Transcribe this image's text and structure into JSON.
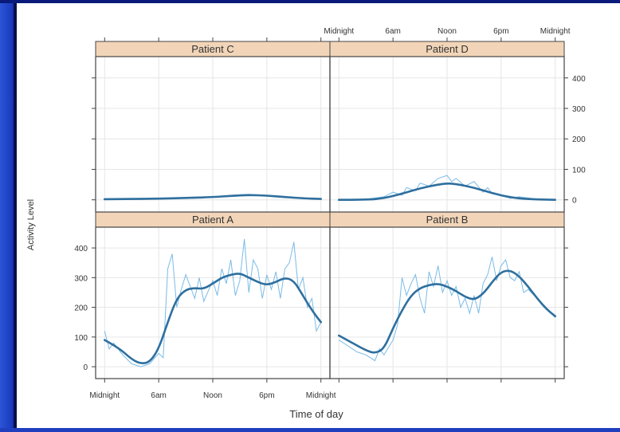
{
  "colors": {
    "strip": "#f2d5b8",
    "raw": "#6cb4e4",
    "smooth": "#2e6f9e",
    "frame": "#444444",
    "grid": "#e6e6e6"
  },
  "chart_data": {
    "type": "line",
    "xlabel": "Time of day",
    "ylabel": "Activity Level",
    "x_ticks": [
      0,
      6,
      12,
      18,
      24
    ],
    "x_tick_labels": [
      "Midnight",
      "6am",
      "Noon",
      "6pm",
      "Midnight"
    ],
    "xlim": [
      -1,
      25
    ],
    "ylim": [
      -40,
      470
    ],
    "y_ticks": [
      0,
      100,
      200,
      300,
      400
    ],
    "panels": [
      {
        "name": "Patient A",
        "smooth": [
          [
            0,
            90
          ],
          [
            1.5,
            65
          ],
          [
            3,
            25
          ],
          [
            4,
            10
          ],
          [
            5,
            15
          ],
          [
            6,
            60
          ],
          [
            7,
            150
          ],
          [
            8,
            230
          ],
          [
            9,
            260
          ],
          [
            10,
            265
          ],
          [
            11,
            262
          ],
          [
            12,
            280
          ],
          [
            13,
            300
          ],
          [
            14,
            310
          ],
          [
            15,
            315
          ],
          [
            16,
            300
          ],
          [
            17,
            285
          ],
          [
            18,
            275
          ],
          [
            19,
            285
          ],
          [
            20,
            300
          ],
          [
            21,
            290
          ],
          [
            22,
            240
          ],
          [
            23,
            190
          ],
          [
            24,
            150
          ]
        ],
        "raw": [
          [
            0,
            120
          ],
          [
            0.5,
            60
          ],
          [
            1,
            80
          ],
          [
            2,
            40
          ],
          [
            3,
            10
          ],
          [
            4,
            0
          ],
          [
            5,
            10
          ],
          [
            6,
            45
          ],
          [
            6.5,
            30
          ],
          [
            7,
            330
          ],
          [
            7.5,
            380
          ],
          [
            8,
            200
          ],
          [
            8.5,
            260
          ],
          [
            9,
            310
          ],
          [
            10,
            230
          ],
          [
            10.5,
            300
          ],
          [
            11,
            220
          ],
          [
            12,
            290
          ],
          [
            12.5,
            240
          ],
          [
            13,
            330
          ],
          [
            13.5,
            280
          ],
          [
            14,
            360
          ],
          [
            14.5,
            240
          ],
          [
            15,
            290
          ],
          [
            15.5,
            430
          ],
          [
            16,
            250
          ],
          [
            16.5,
            360
          ],
          [
            17,
            330
          ],
          [
            17.5,
            230
          ],
          [
            18,
            310
          ],
          [
            18.5,
            260
          ],
          [
            19,
            320
          ],
          [
            19.5,
            230
          ],
          [
            20,
            330
          ],
          [
            20.5,
            350
          ],
          [
            21,
            420
          ],
          [
            21.5,
            260
          ],
          [
            22,
            300
          ],
          [
            22.5,
            200
          ],
          [
            23,
            230
          ],
          [
            23.5,
            120
          ],
          [
            24,
            150
          ]
        ]
      },
      {
        "name": "Patient B",
        "smooth": [
          [
            0,
            105
          ],
          [
            1.5,
            80
          ],
          [
            3,
            55
          ],
          [
            4,
            45
          ],
          [
            5,
            60
          ],
          [
            6,
            130
          ],
          [
            7,
            190
          ],
          [
            8,
            240
          ],
          [
            9,
            265
          ],
          [
            10,
            275
          ],
          [
            11,
            280
          ],
          [
            12,
            270
          ],
          [
            13,
            255
          ],
          [
            14,
            235
          ],
          [
            15,
            225
          ],
          [
            16,
            245
          ],
          [
            17,
            285
          ],
          [
            18,
            320
          ],
          [
            19,
            325
          ],
          [
            20,
            305
          ],
          [
            21,
            270
          ],
          [
            22,
            230
          ],
          [
            23,
            195
          ],
          [
            24,
            170
          ]
        ],
        "raw": [
          [
            0,
            90
          ],
          [
            1,
            70
          ],
          [
            2,
            50
          ],
          [
            3,
            40
          ],
          [
            4,
            20
          ],
          [
            4.5,
            60
          ],
          [
            5,
            40
          ],
          [
            6,
            90
          ],
          [
            6.5,
            140
          ],
          [
            7,
            300
          ],
          [
            7.5,
            240
          ],
          [
            8,
            280
          ],
          [
            8.5,
            310
          ],
          [
            9,
            230
          ],
          [
            9.5,
            180
          ],
          [
            10,
            320
          ],
          [
            10.5,
            270
          ],
          [
            11,
            340
          ],
          [
            11.5,
            250
          ],
          [
            12,
            290
          ],
          [
            12.5,
            240
          ],
          [
            13,
            270
          ],
          [
            13.5,
            200
          ],
          [
            14,
            230
          ],
          [
            14.5,
            180
          ],
          [
            15,
            240
          ],
          [
            15.5,
            180
          ],
          [
            16,
            280
          ],
          [
            16.5,
            310
          ],
          [
            17,
            370
          ],
          [
            17.5,
            290
          ],
          [
            18,
            340
          ],
          [
            18.5,
            360
          ],
          [
            19,
            300
          ],
          [
            19.5,
            290
          ],
          [
            20,
            320
          ],
          [
            20.5,
            250
          ],
          [
            21,
            260
          ],
          [
            22,
            230
          ],
          [
            23,
            200
          ],
          [
            24,
            165
          ]
        ]
      },
      {
        "name": "Patient C",
        "smooth": [
          [
            0,
            2
          ],
          [
            3,
            3
          ],
          [
            6,
            4
          ],
          [
            9,
            6
          ],
          [
            12,
            9
          ],
          [
            14,
            13
          ],
          [
            16,
            16
          ],
          [
            18,
            14
          ],
          [
            20,
            9
          ],
          [
            22,
            5
          ],
          [
            24,
            3
          ]
        ],
        "raw": [
          [
            0,
            2
          ],
          [
            2,
            4
          ],
          [
            4,
            1
          ],
          [
            6,
            3
          ],
          [
            8,
            7
          ],
          [
            10,
            5
          ],
          [
            12,
            10
          ],
          [
            14,
            15
          ],
          [
            16,
            18
          ],
          [
            18,
            12
          ],
          [
            20,
            8
          ],
          [
            22,
            6
          ],
          [
            24,
            2
          ]
        ]
      },
      {
        "name": "Patient D",
        "smooth": [
          [
            0,
            0
          ],
          [
            3,
            0
          ],
          [
            5,
            5
          ],
          [
            7,
            20
          ],
          [
            9,
            38
          ],
          [
            11,
            50
          ],
          [
            12,
            54
          ],
          [
            13,
            52
          ],
          [
            15,
            40
          ],
          [
            17,
            22
          ],
          [
            19,
            8
          ],
          [
            21,
            2
          ],
          [
            24,
            0
          ]
        ],
        "raw": [
          [
            0,
            0
          ],
          [
            3,
            2
          ],
          [
            5,
            10
          ],
          [
            6,
            25
          ],
          [
            7,
            15
          ],
          [
            7.5,
            40
          ],
          [
            8.5,
            30
          ],
          [
            9,
            55
          ],
          [
            10,
            45
          ],
          [
            11,
            70
          ],
          [
            12,
            80
          ],
          [
            12.5,
            60
          ],
          [
            13,
            70
          ],
          [
            14,
            45
          ],
          [
            15,
            60
          ],
          [
            16,
            25
          ],
          [
            16.5,
            40
          ],
          [
            17,
            20
          ],
          [
            18,
            15
          ],
          [
            19,
            5
          ],
          [
            20,
            10
          ],
          [
            22,
            2
          ],
          [
            24,
            0
          ]
        ]
      }
    ],
    "layout": "2x2",
    "grid": true
  }
}
